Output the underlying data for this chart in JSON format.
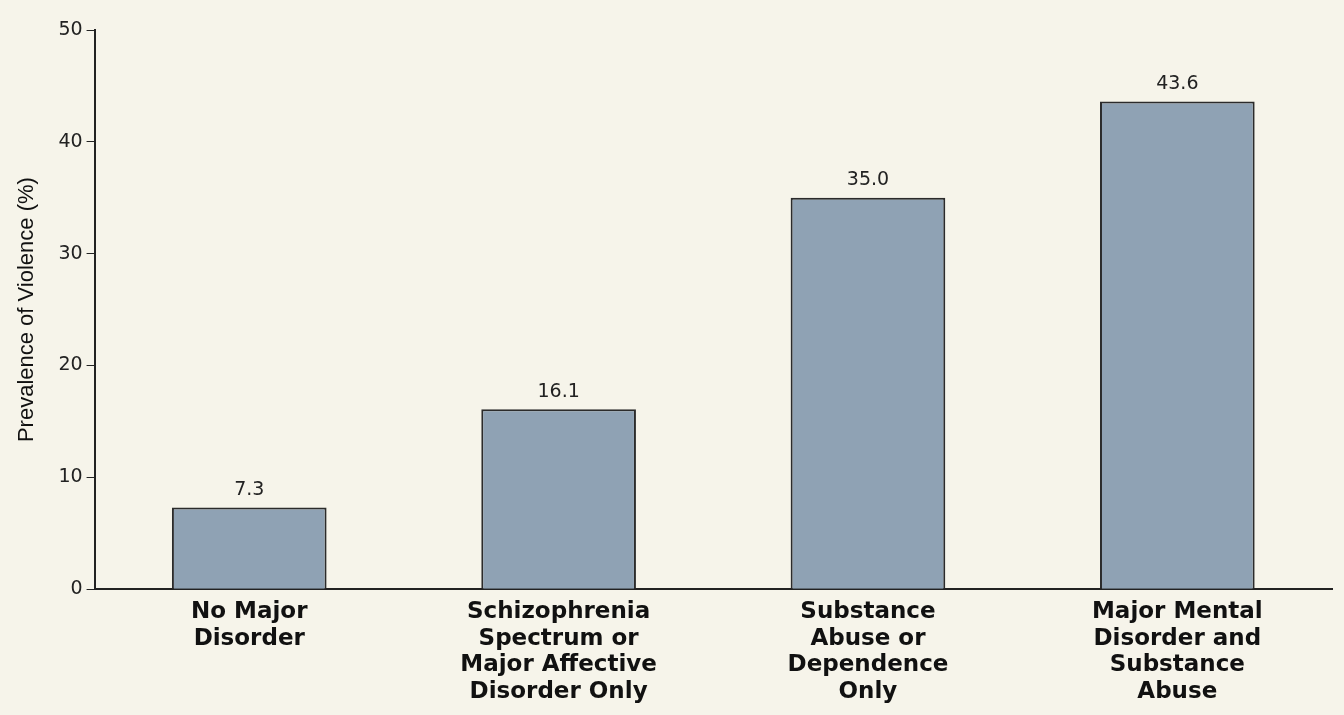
{
  "chart_data": {
    "type": "bar",
    "ylabel": "Prevalence of Violence (%)",
    "categories": [
      "No Major Disorder",
      "Schizophrenia Spectrum or Major Affective Disorder Only",
      "Substance Abuse or Dependence Only",
      "Major Mental Disorder and Substance Abuse"
    ],
    "values": [
      7.3,
      16.1,
      35.0,
      43.6
    ],
    "value_labels": [
      "7.3",
      "16.1",
      "35.0",
      "43.6"
    ],
    "color": "#8fa2b4",
    "ylim": [
      0,
      50
    ],
    "yticks": [
      0,
      10,
      20,
      30,
      40,
      50
    ],
    "grid": false,
    "legend": false
  }
}
